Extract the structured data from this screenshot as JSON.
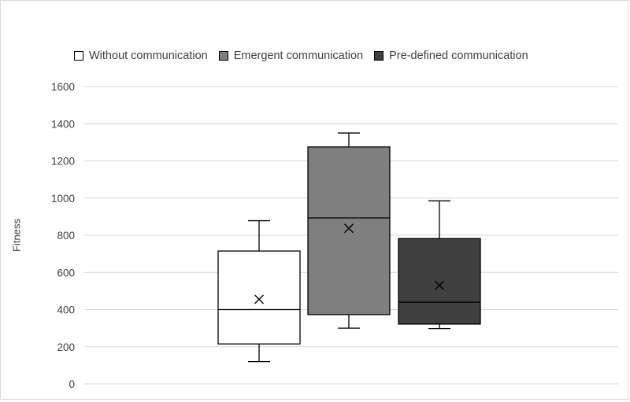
{
  "chart_data": {
    "type": "box",
    "title": "",
    "xlabel": "",
    "ylabel": "Fitness",
    "ylim": [
      0,
      1600
    ],
    "yticks": [
      0,
      200,
      400,
      600,
      800,
      1000,
      1200,
      1400,
      1600
    ],
    "grid": true,
    "legend_position": "top",
    "series": [
      {
        "name": "Without communication",
        "color": "#ffffff",
        "min": 120,
        "q1": 215,
        "median": 400,
        "q3": 715,
        "max": 878,
        "mean": 455
      },
      {
        "name": "Emergent communication",
        "color": "#7f7f7f",
        "min": 300,
        "q1": 373,
        "median": 893,
        "q3": 1275,
        "max": 1350,
        "mean": 837
      },
      {
        "name": "Pre-defined communication",
        "color": "#404040",
        "min": 298,
        "q1": 322,
        "median": 440,
        "q3": 782,
        "max": 985,
        "mean": 530
      }
    ]
  }
}
